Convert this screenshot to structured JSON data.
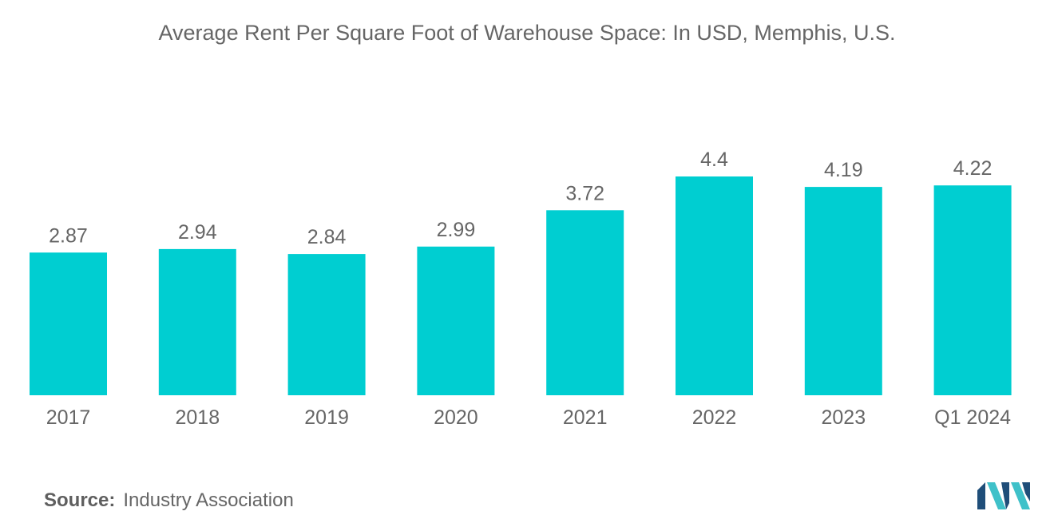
{
  "chart_data": {
    "type": "bar",
    "title": "Average Rent Per Square Foot of Warehouse Space: In USD, Memphis, U.S.",
    "categories": [
      "2017",
      "2018",
      "2019",
      "2020",
      "2021",
      "2022",
      "2023",
      "Q1 2024"
    ],
    "series": [
      {
        "name": "Average Rent Per Square Foot (USD)",
        "values": [
          2.87,
          2.94,
          2.84,
          2.99,
          3.72,
          4.4,
          4.19,
          4.22
        ],
        "labels": [
          "2.87",
          "2.94",
          "2.84",
          "2.99",
          "3.72",
          "4.4",
          "4.19",
          "4.22"
        ]
      }
    ],
    "xlabel": "",
    "ylabel": "",
    "ylim": [
      0,
      4.4
    ],
    "grid": false,
    "legend": "none",
    "bar_color": "#00CED1"
  },
  "footer": {
    "source_label": "Source:",
    "source_text": "Industry Association"
  },
  "colors": {
    "text": "#666666",
    "bar": "#00CED1",
    "logo_dark": "#1f4e79",
    "logo_light": "#3fc1c9"
  }
}
